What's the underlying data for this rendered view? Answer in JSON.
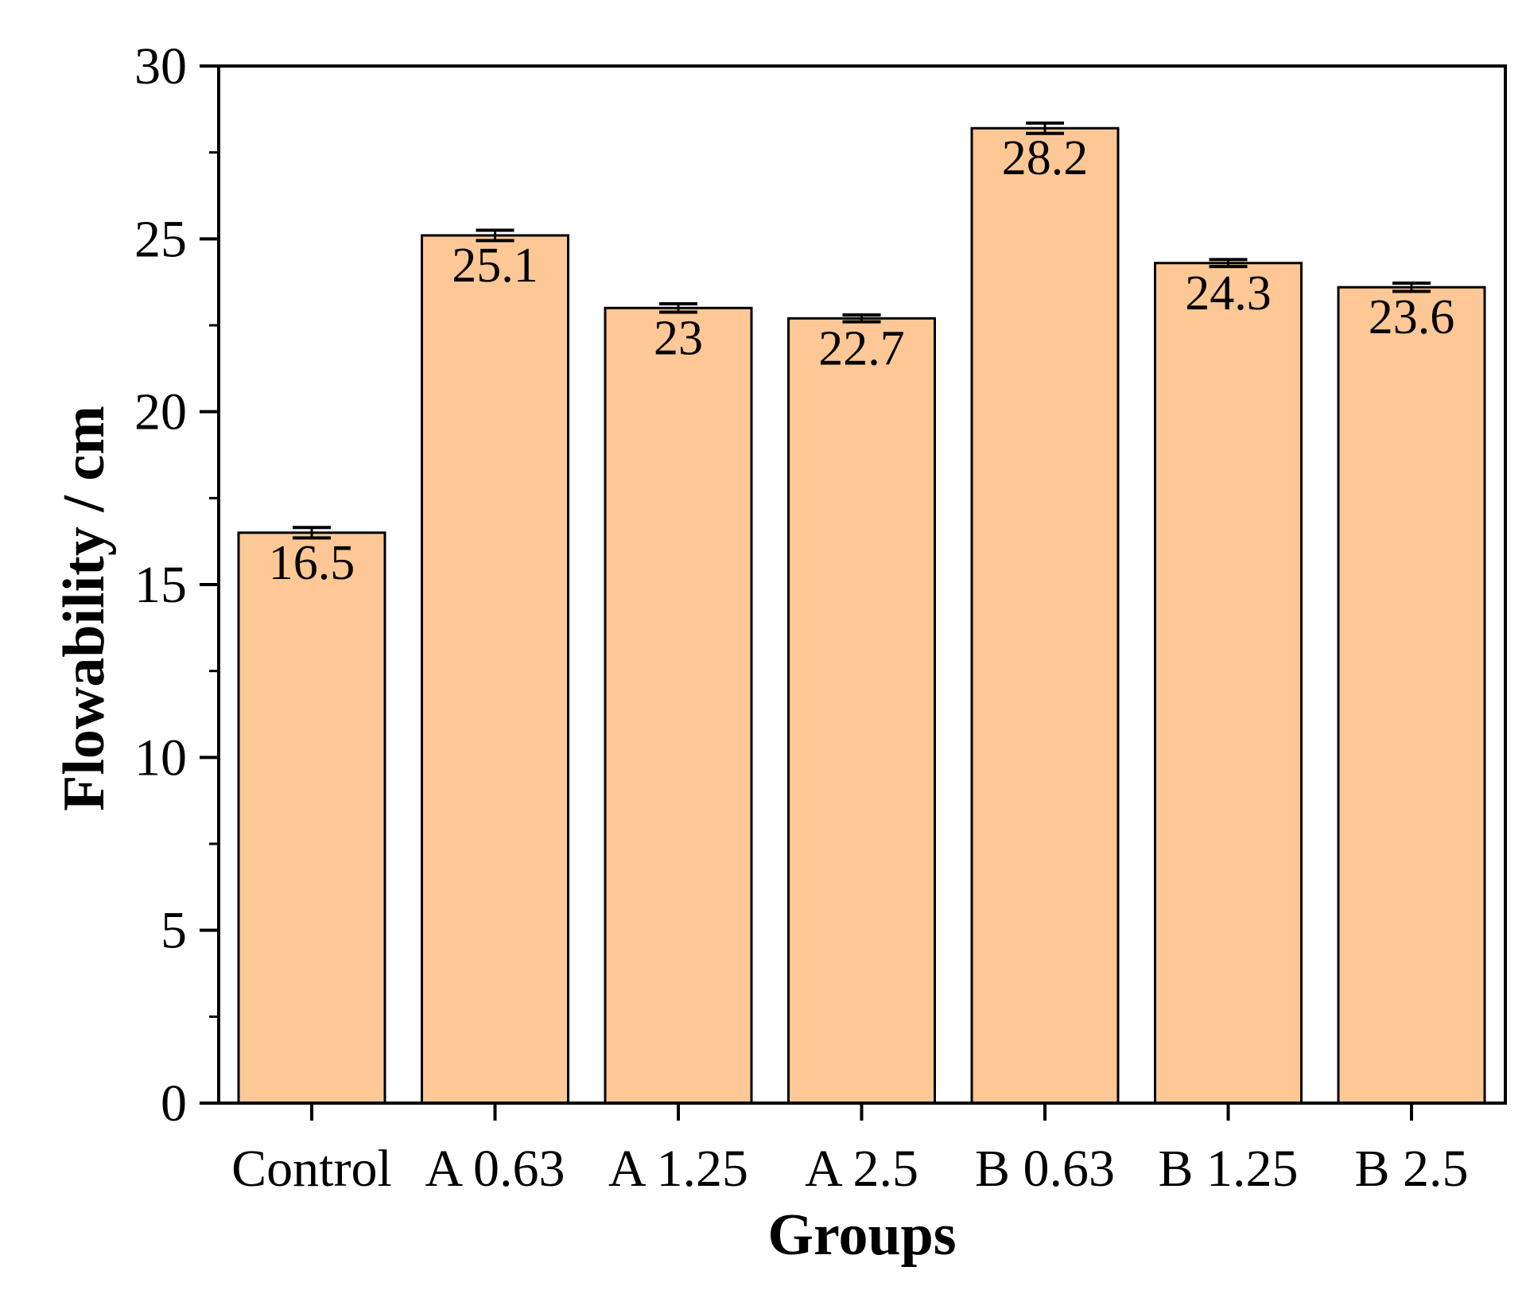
{
  "chart_data": {
    "type": "bar",
    "title": "",
    "xlabel": "Groups",
    "ylabel": "Flowability / cm",
    "categories": [
      "Control",
      "A 0.63",
      "A 1.25",
      "A 2.5",
      "B 0.63",
      "B 1.25",
      "B 2.5"
    ],
    "values": [
      16.5,
      25.1,
      23,
      22.7,
      28.2,
      24.3,
      23.6
    ],
    "value_labels": [
      "16.5",
      "25.1",
      "23",
      "22.7",
      "28.2",
      "24.3",
      "23.6"
    ],
    "error": [
      0.15,
      0.15,
      0.12,
      0.1,
      0.15,
      0.1,
      0.12
    ],
    "ylim": [
      0,
      30
    ],
    "yticks": [
      0,
      5,
      10,
      15,
      20,
      25,
      30
    ],
    "ytick_labels": [
      "0",
      "5",
      "10",
      "15",
      "20",
      "25",
      "30"
    ],
    "grid": false,
    "legend": "none",
    "colors": {
      "bar_fill": "#FDC895",
      "bar_stroke": "#000000",
      "axis": "#000000"
    }
  }
}
